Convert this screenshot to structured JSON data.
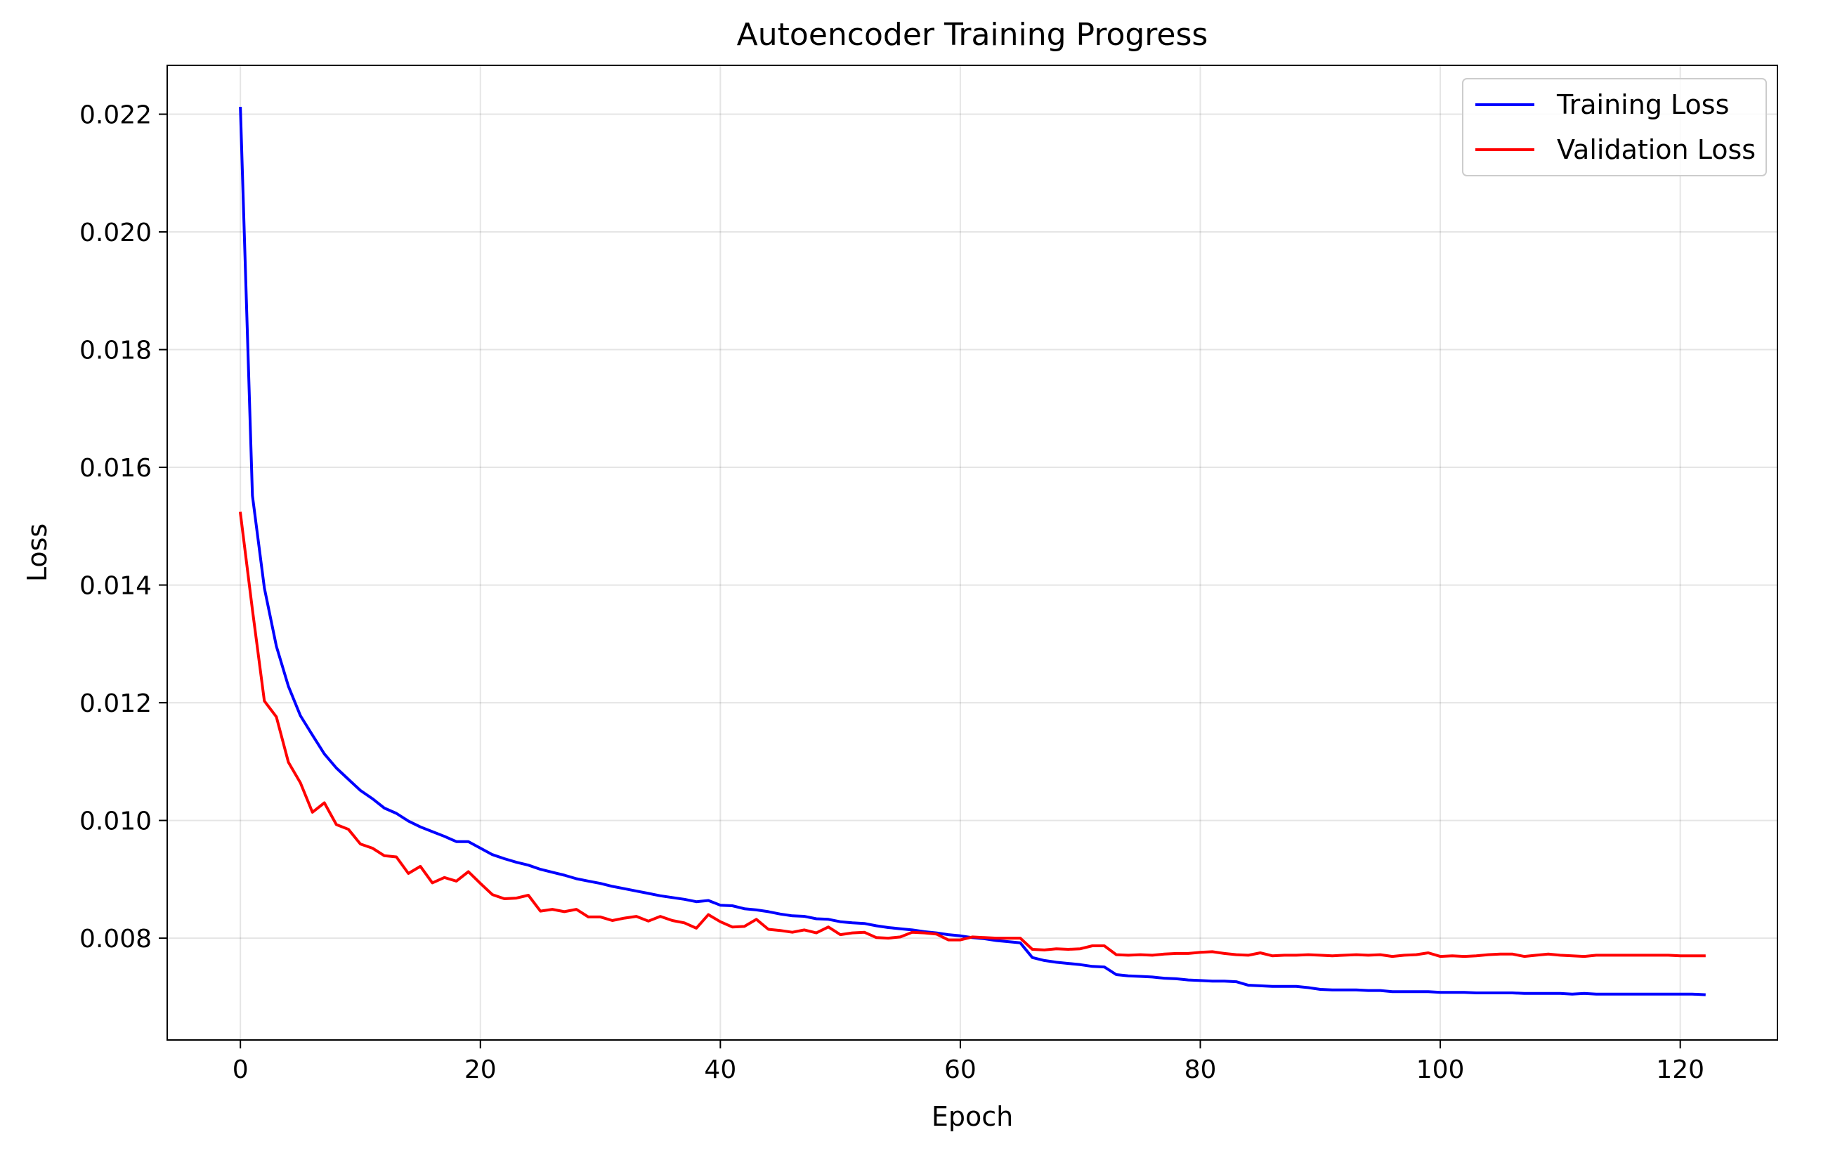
{
  "chart_data": {
    "type": "line",
    "title": "Autoencoder Training Progress",
    "xlabel": "Epoch",
    "ylabel": "Loss",
    "xlim": [
      -6.1,
      128.1
    ],
    "ylim": [
      0.00627,
      0.02283
    ],
    "x_ticks": [
      0,
      20,
      40,
      60,
      80,
      100,
      120
    ],
    "x_tick_labels": [
      "0",
      "20",
      "40",
      "60",
      "80",
      "100",
      "120"
    ],
    "y_ticks": [
      0.008,
      0.01,
      0.012,
      0.014,
      0.016,
      0.018,
      0.02,
      0.022
    ],
    "y_tick_labels": [
      "0.008",
      "0.010",
      "0.012",
      "0.014",
      "0.016",
      "0.018",
      "0.020",
      "0.022"
    ],
    "grid": true,
    "legend_position": "top-right",
    "series": [
      {
        "name": "Training Loss",
        "color": "#0000ff",
        "x_start": 0,
        "values": [
          0.0221,
          0.01552,
          0.01395,
          0.01296,
          0.01228,
          0.01178,
          0.01145,
          0.01113,
          0.01089,
          0.0107,
          0.01051,
          0.01037,
          0.01021,
          0.01012,
          0.00999,
          0.00989,
          0.00981,
          0.00973,
          0.00964,
          0.00964,
          0.00953,
          0.00942,
          0.00935,
          0.00929,
          0.00924,
          0.00917,
          0.00912,
          0.00907,
          0.00901,
          0.00897,
          0.00893,
          0.00888,
          0.00884,
          0.0088,
          0.00876,
          0.00872,
          0.00869,
          0.00866,
          0.00862,
          0.00864,
          0.00856,
          0.00855,
          0.0085,
          0.00848,
          0.00845,
          0.00841,
          0.00838,
          0.00837,
          0.00833,
          0.00832,
          0.00828,
          0.00826,
          0.00825,
          0.00821,
          0.00818,
          0.00816,
          0.00814,
          0.00811,
          0.00809,
          0.00806,
          0.00804,
          0.00801,
          0.00799,
          0.00796,
          0.00794,
          0.00792,
          0.00767,
          0.00762,
          0.00759,
          0.00757,
          0.00755,
          0.00752,
          0.00751,
          0.00738,
          0.00736,
          0.00735,
          0.00734,
          0.00732,
          0.00731,
          0.00729,
          0.00728,
          0.00727,
          0.00727,
          0.00726,
          0.0072,
          0.00719,
          0.00718,
          0.00718,
          0.00718,
          0.00716,
          0.00713,
          0.00712,
          0.00712,
          0.00712,
          0.00711,
          0.00711,
          0.00709,
          0.00709,
          0.00709,
          0.00709,
          0.00708,
          0.00708,
          0.00708,
          0.00707,
          0.00707,
          0.00707,
          0.00707,
          0.00706,
          0.00706,
          0.00706,
          0.00706,
          0.00705,
          0.00706,
          0.00705,
          0.00705,
          0.00705,
          0.00705,
          0.00705,
          0.00705,
          0.00705,
          0.00705,
          0.00705,
          0.00704
        ]
      },
      {
        "name": "Validation Loss",
        "color": "#ff0000",
        "x_start": 0,
        "values": [
          0.01522,
          0.01358,
          0.01203,
          0.01176,
          0.01099,
          0.01064,
          0.01014,
          0.0103,
          0.00993,
          0.00985,
          0.0096,
          0.00953,
          0.0094,
          0.00938,
          0.0091,
          0.00922,
          0.00894,
          0.00903,
          0.00897,
          0.00913,
          0.00893,
          0.00874,
          0.00867,
          0.00868,
          0.00873,
          0.00846,
          0.00849,
          0.00845,
          0.00849,
          0.00836,
          0.00836,
          0.0083,
          0.00834,
          0.00837,
          0.00829,
          0.00837,
          0.0083,
          0.00826,
          0.00817,
          0.0084,
          0.00828,
          0.00819,
          0.0082,
          0.00832,
          0.00815,
          0.00813,
          0.0081,
          0.00814,
          0.00809,
          0.00819,
          0.00806,
          0.00809,
          0.0081,
          0.00801,
          0.008,
          0.00802,
          0.0081,
          0.00809,
          0.00807,
          0.00797,
          0.00797,
          0.00802,
          0.00801,
          0.008,
          0.008,
          0.008,
          0.00781,
          0.0078,
          0.00782,
          0.00781,
          0.00782,
          0.00787,
          0.00787,
          0.00772,
          0.00771,
          0.00772,
          0.00771,
          0.00773,
          0.00774,
          0.00774,
          0.00776,
          0.00777,
          0.00774,
          0.00772,
          0.00771,
          0.00775,
          0.0077,
          0.00771,
          0.00771,
          0.00772,
          0.00771,
          0.0077,
          0.00771,
          0.00772,
          0.00771,
          0.00772,
          0.00769,
          0.00771,
          0.00772,
          0.00775,
          0.00769,
          0.0077,
          0.00769,
          0.0077,
          0.00772,
          0.00773,
          0.00773,
          0.00769,
          0.00771,
          0.00773,
          0.00771,
          0.0077,
          0.00769,
          0.00771,
          0.00771,
          0.00771,
          0.00771,
          0.00771,
          0.00771,
          0.00771,
          0.0077,
          0.0077,
          0.0077
        ]
      }
    ]
  }
}
